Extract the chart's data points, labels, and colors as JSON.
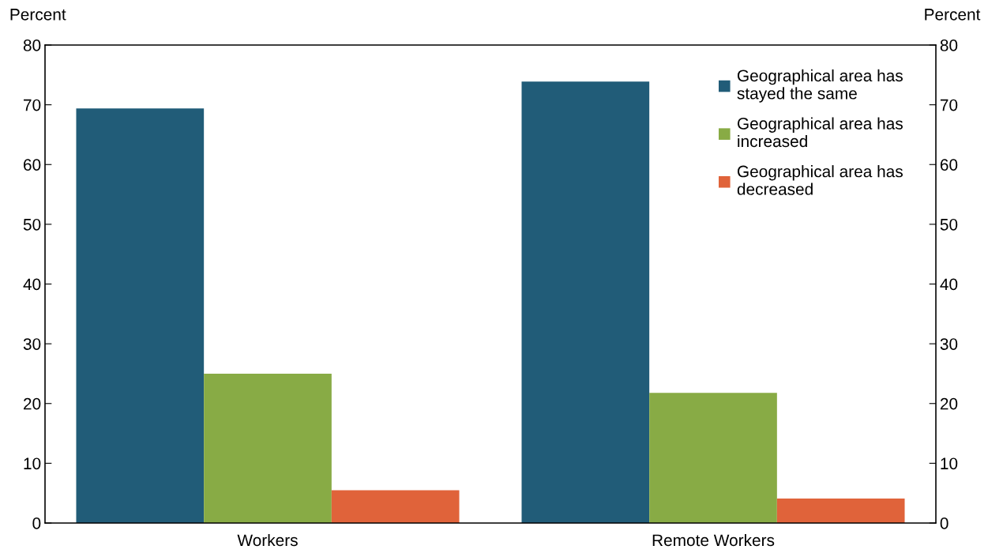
{
  "chart_data": {
    "type": "bar",
    "categories": [
      "Workers",
      "Remote Workers"
    ],
    "series": [
      {
        "name": "Geographical area has\nstayed the same",
        "color": "#215c78",
        "values": [
          69.4,
          73.9
        ]
      },
      {
        "name": "Geographical area has\nincreased",
        "color": "#88ab45",
        "values": [
          25.0,
          21.8
        ]
      },
      {
        "name": "Geographical area has\ndecreased",
        "color": "#e0633a",
        "values": [
          5.5,
          4.1
        ]
      }
    ],
    "ylabel": "Percent",
    "y2label": "Percent",
    "ylim": [
      0,
      80
    ],
    "yticks": [
      0,
      10,
      20,
      30,
      40,
      50,
      60,
      70,
      80
    ],
    "y2lim": [
      0,
      80
    ],
    "y2ticks": [
      0,
      10,
      20,
      30,
      40,
      50,
      60,
      70,
      80
    ],
    "grid": false,
    "legend": "top right"
  }
}
